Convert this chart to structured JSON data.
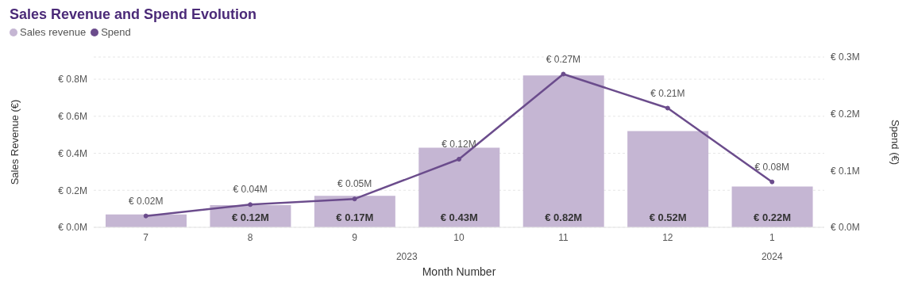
{
  "chart_data": {
    "type": "bar",
    "title": "Sales Revenue and Spend Evolution",
    "xlabel": "Month Number",
    "ylabel": "Sales Revenue (€)",
    "y2label": "Spend (€)",
    "categories": [
      "7",
      "8",
      "9",
      "10",
      "11",
      "12",
      "1"
    ],
    "series": [
      {
        "name": "Sales revenue",
        "color": "#c5b6d3",
        "values": [
          0.07,
          0.12,
          0.17,
          0.43,
          0.82,
          0.52,
          0.22
        ],
        "value_labels": [
          null,
          "€ 0.12M",
          "€ 0.17M",
          "€ 0.43M",
          "€ 0.82M",
          "€ 0.52M",
          "€ 0.22M"
        ]
      },
      {
        "name": "Spend",
        "type": "line",
        "axis": "y2",
        "color": "#6b4c8c",
        "values": [
          0.02,
          0.04,
          0.05,
          0.12,
          0.27,
          0.21,
          0.08
        ],
        "value_labels": [
          "€ 0.02M",
          "€ 0.04M",
          "€ 0.05M",
          "€ 0.12M",
          "€ 0.27M",
          "€ 0.21M",
          "€ 0.08M"
        ]
      }
    ],
    "ylim": [
      0,
      0.92
    ],
    "yticks": [
      {
        "value": 0,
        "label": "€ 0.0M"
      },
      {
        "value": 0.2,
        "label": "€ 0.2M"
      },
      {
        "value": 0.4,
        "label": "€ 0.4M"
      },
      {
        "value": 0.6,
        "label": "€ 0.6M"
      },
      {
        "value": 0.8,
        "label": "€ 0.8M"
      }
    ],
    "y2lim": [
      0,
      0.3
    ],
    "y2ticks": [
      {
        "value": 0,
        "label": "€ 0.0M"
      },
      {
        "value": 0.1,
        "label": "€ 0.1M"
      },
      {
        "value": 0.2,
        "label": "€ 0.2M"
      },
      {
        "value": 0.3,
        "label": "€ 0.3M"
      }
    ],
    "annotations": [
      "2023",
      "2024"
    ],
    "grid": "y",
    "legend": "top left",
    "marker": "circle",
    "line_style": "solid"
  }
}
